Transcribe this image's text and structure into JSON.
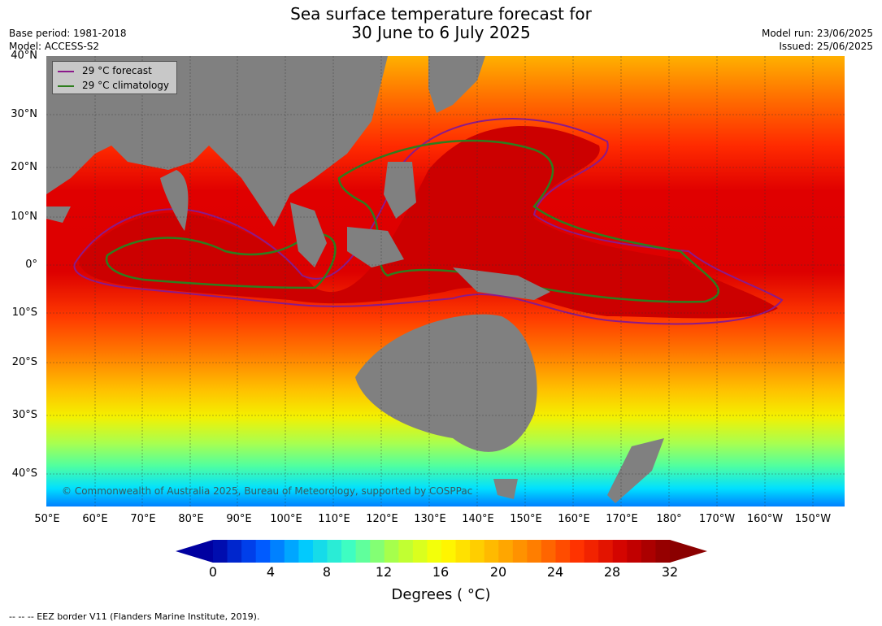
{
  "title": {
    "line1": "Sea surface temperature forecast for",
    "line2": "30 June to 6 July 2025"
  },
  "meta_left": {
    "base_period": "Base period: 1981-2018",
    "model": "Model: ACCESS-S2"
  },
  "meta_right": {
    "model_run": "Model run: 23/06/2025",
    "issued": "Issued: 25/06/2025"
  },
  "lat_labels": [
    "40°N",
    "30°N",
    "20°N",
    "10°N",
    "0°",
    "10°S",
    "20°S",
    "30°S",
    "40°S"
  ],
  "lon_labels": [
    "50°E",
    "60°E",
    "70°E",
    "80°E",
    "90°E",
    "100°E",
    "110°E",
    "120°E",
    "130°E",
    "140°E",
    "150°E",
    "160°E",
    "170°E",
    "180°",
    "170°W",
    "160°W",
    "150°W"
  ],
  "legend": {
    "forecast_label": "29 °C  forecast",
    "climatology_label": "29 °C  climatology",
    "forecast_color": "#8b1a8b",
    "climatology_color": "#2e7d1e"
  },
  "copyright": "© Commonwealth of Australia 2025, Bureau of Meteorology, supported by COSPPac",
  "colorbar": {
    "ticks": [
      "0",
      "4",
      "8",
      "12",
      "16",
      "20",
      "24",
      "28",
      "32"
    ],
    "label": "Degrees ( °C)",
    "min": 0,
    "max": 32,
    "step": 1
  },
  "footer": "--  --  -- EEZ border V11 (Flanders Marine Institute, 2019).",
  "colors": {
    "land": "#808080",
    "ocean_gradient_stops": [
      "#0000a0",
      "#0050ff",
      "#00c8ff",
      "#40ffc0",
      "#b0ff40",
      "#ffff00",
      "#ffc000",
      "#ff8000",
      "#ff3000",
      "#d00000",
      "#8b0000"
    ]
  }
}
